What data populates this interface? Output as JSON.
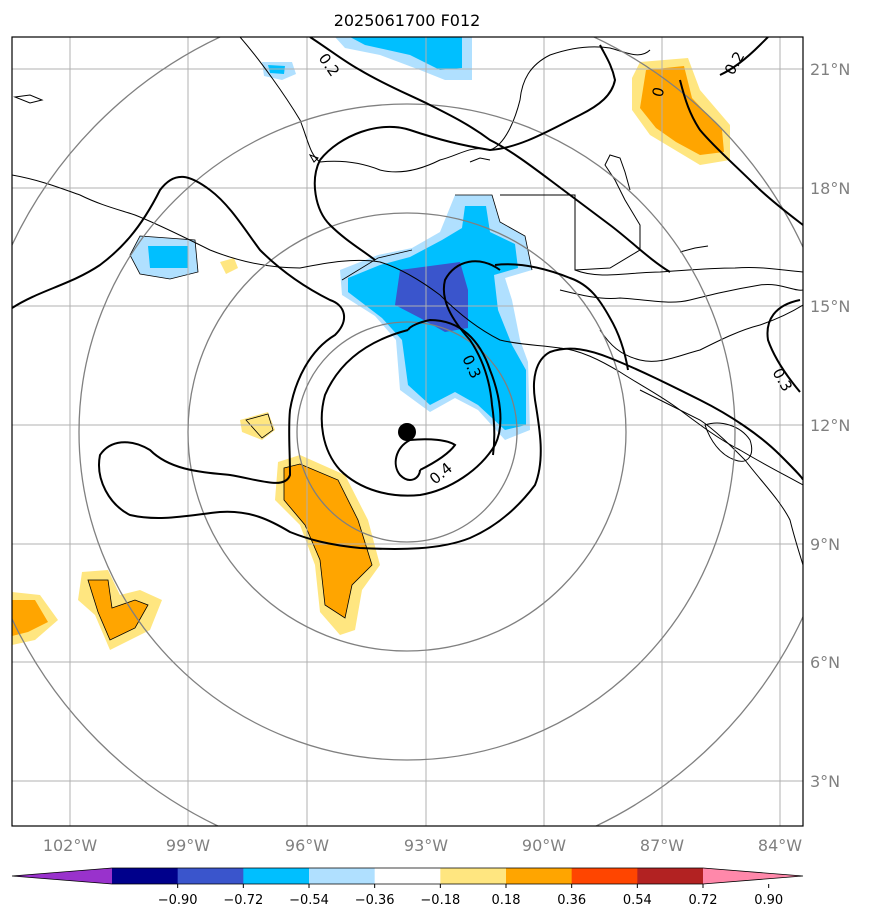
{
  "title": "2025061700 F012",
  "grid": {
    "lon_labels": [
      "102°W",
      "99°W",
      "96°W",
      "93°W",
      "90°W",
      "87°W",
      "84°W"
    ],
    "lat_labels": [
      "21°N",
      "18°N",
      "15°N",
      "12°N",
      "9°N",
      "6°N",
      "3°N"
    ],
    "gridlines": true
  },
  "contour_labels": [
    "0.2",
    "0.2",
    "0",
    "0.3",
    "0.3",
    "0.4"
  ],
  "colorbar": {
    "ticks": [
      "−0.90",
      "−0.72",
      "−0.54",
      "−0.36",
      "−0.18",
      "0.18",
      "0.36",
      "0.54",
      "0.72",
      "0.90"
    ],
    "colors": [
      "#9932cc",
      "#00008b",
      "#3a55cc",
      "#00bfff",
      "#b0e0ff",
      "#ffffff",
      "#ffe680",
      "#ffa500",
      "#ff4500",
      "#b22222",
      "#ff88aa"
    ],
    "extend": "both"
  },
  "colors": {
    "fill_light_blue": "#b0e0ff",
    "fill_blue": "#00bfff",
    "fill_dark_blue": "#3a55cc",
    "fill_light_yellow": "#ffe680",
    "fill_orange": "#ffa500",
    "range_rings": "#808080",
    "gridlines": "#b0b0b0",
    "contours": "#000000",
    "center_marker": "#000000"
  }
}
